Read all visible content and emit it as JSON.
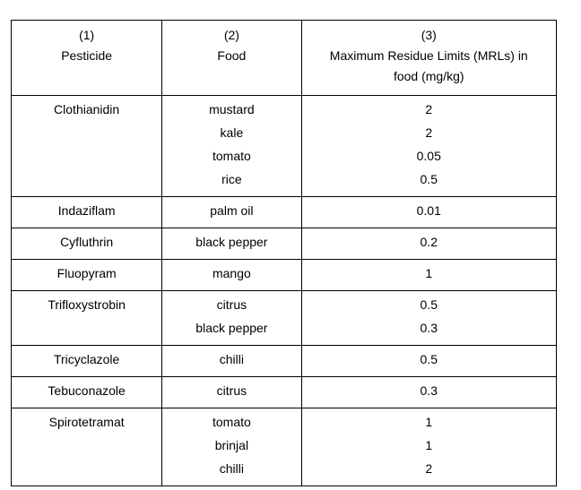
{
  "header": {
    "col1_num": "(1)",
    "col1_label": "Pesticide",
    "col2_num": "(2)",
    "col2_label": "Food",
    "col3_num": "(3)",
    "col3_label_line1": "Maximum Residue Limits (MRLs) in",
    "col3_label_line2": "food (mg/kg)"
  },
  "rows": [
    {
      "pesticide": "Clothianidin",
      "foods": [
        "mustard",
        "kale",
        "tomato",
        "rice"
      ],
      "mrls": [
        "2",
        "2",
        "0.05",
        "0.5"
      ]
    },
    {
      "pesticide": "Indaziflam",
      "foods": [
        "palm oil"
      ],
      "mrls": [
        "0.01"
      ]
    },
    {
      "pesticide": "Cyfluthrin",
      "foods": [
        "black pepper"
      ],
      "mrls": [
        "0.2"
      ]
    },
    {
      "pesticide": "Fluopyram",
      "foods": [
        "mango"
      ],
      "mrls": [
        "1"
      ]
    },
    {
      "pesticide": "Trifloxystrobin",
      "foods": [
        "citrus",
        "black pepper"
      ],
      "mrls": [
        "0.5",
        "0.3"
      ]
    },
    {
      "pesticide": "Tricyclazole",
      "foods": [
        "chilli"
      ],
      "mrls": [
        "0.5"
      ]
    },
    {
      "pesticide": "Tebuconazole",
      "foods": [
        "citrus"
      ],
      "mrls": [
        "0.3"
      ]
    },
    {
      "pesticide": "Spirotetramat",
      "foods": [
        "tomato",
        "brinjal",
        "chilli"
      ],
      "mrls": [
        "1",
        "1",
        "2"
      ]
    }
  ]
}
